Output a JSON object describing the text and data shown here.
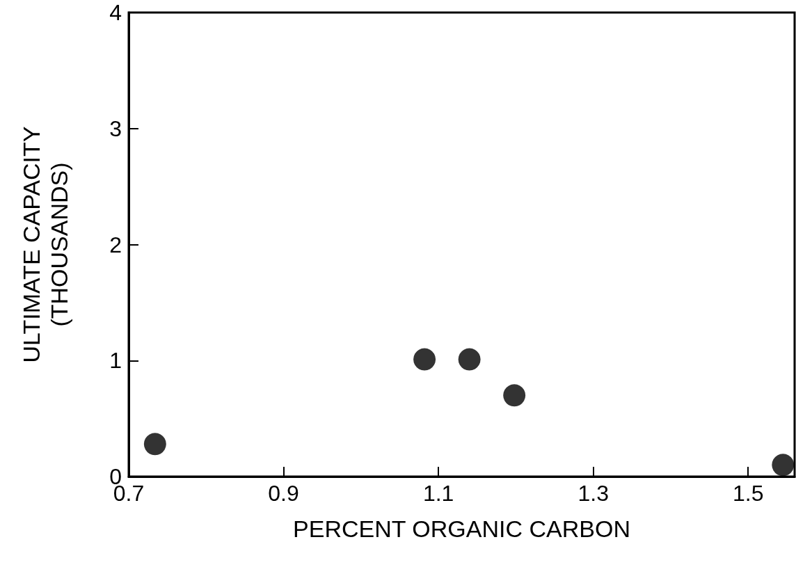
{
  "chart_data": {
    "type": "scatter",
    "xlabel": "PERCENT ORGANIC CARBON",
    "ylabel": "ULTIMATE CAPACITY\n(THOUSANDS)",
    "x": [
      0.734,
      1.082,
      1.14,
      1.198,
      1.545
    ],
    "values": [
      0.28,
      1.01,
      1.01,
      0.7,
      0.1
    ],
    "color": "#000000",
    "marker": "circle",
    "grid": false,
    "xlim": [
      0.7,
      1.56
    ],
    "xticks": [
      0.7,
      0.9,
      1.1,
      1.3,
      1.5
    ],
    "ylim": [
      0,
      4
    ],
    "yticks": [
      0,
      1,
      2,
      3,
      4
    ]
  }
}
